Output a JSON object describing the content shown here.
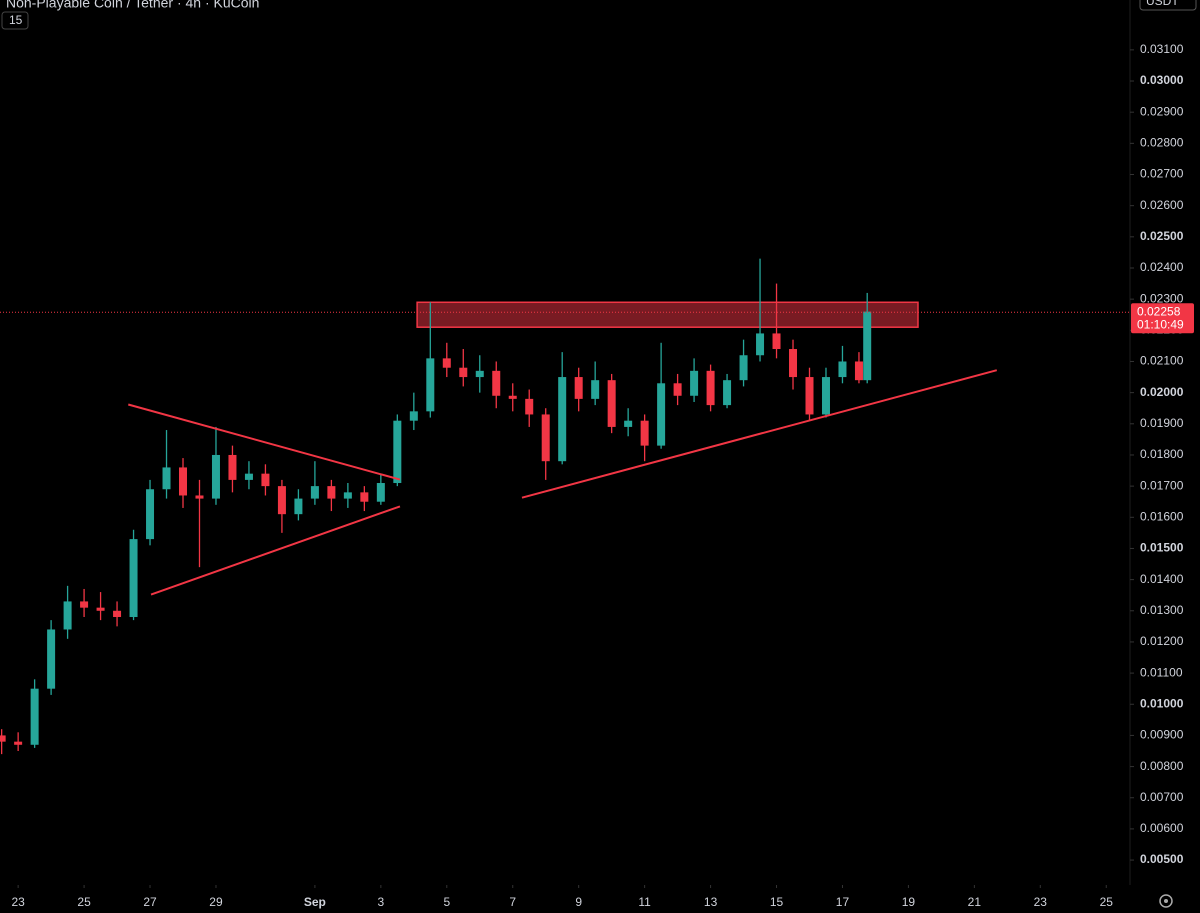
{
  "chart_data": {
    "type": "candlestick",
    "title": "Non-Playable Coin / Tether · 4h · KuCoin",
    "indicator": "15",
    "quote": "USDT",
    "countdown": "01:10:49",
    "last_price": 0.02258,
    "up_color": "#26a69a",
    "down_color": "#f23645",
    "x": [
      -0.5,
      0,
      0.5,
      1,
      1.5,
      2,
      2.5,
      3,
      3.5,
      4,
      4.5,
      5,
      5.5,
      6,
      6.5,
      7,
      7.5,
      8,
      8.5,
      9,
      9.5,
      10,
      10.5,
      11,
      11.5,
      12,
      12.5,
      13,
      13.5,
      14,
      14.5,
      15,
      15.5,
      16,
      16.5,
      17,
      17.5,
      18,
      18.5,
      19,
      19.5,
      20,
      20.5,
      21,
      21.5,
      22,
      22.5,
      23,
      23.5,
      24,
      24.5,
      25,
      25.5,
      25.75
    ],
    "open": [
      0.009,
      0.0088,
      0.0087,
      0.0105,
      0.0124,
      0.0133,
      0.0131,
      0.013,
      0.0128,
      0.0153,
      0.0169,
      0.0176,
      0.0167,
      0.0166,
      0.018,
      0.0172,
      0.0174,
      0.017,
      0.0161,
      0.0166,
      0.017,
      0.0166,
      0.0168,
      0.0165,
      0.0171,
      0.0191,
      0.0194,
      0.0211,
      0.0208,
      0.0205,
      0.0207,
      0.0199,
      0.0198,
      0.0193,
      0.0178,
      0.0205,
      0.0198,
      0.0204,
      0.0189,
      0.0191,
      0.0183,
      0.0203,
      0.0199,
      0.0207,
      0.0196,
      0.0204,
      0.0212,
      0.0219,
      0.0214,
      0.0205,
      0.0193,
      0.0205,
      0.021,
      0.0204
    ],
    "high": [
      0.0092,
      0.0091,
      0.0108,
      0.0127,
      0.0138,
      0.0137,
      0.0136,
      0.0133,
      0.0156,
      0.0172,
      0.0188,
      0.0179,
      0.0172,
      0.0189,
      0.0183,
      0.0178,
      0.0177,
      0.0172,
      0.0169,
      0.0178,
      0.0172,
      0.0171,
      0.017,
      0.0174,
      0.0193,
      0.02,
      0.0229,
      0.0216,
      0.0214,
      0.0212,
      0.021,
      0.0203,
      0.0201,
      0.0195,
      0.0213,
      0.0208,
      0.021,
      0.0206,
      0.0195,
      0.0193,
      0.0216,
      0.0206,
      0.0211,
      0.0209,
      0.0206,
      0.0217,
      0.0243,
      0.0235,
      0.0217,
      0.0208,
      0.0208,
      0.0215,
      0.0213,
      0.0232
    ],
    "low": [
      0.0084,
      0.0085,
      0.0086,
      0.0103,
      0.0121,
      0.0128,
      0.0127,
      0.0125,
      0.0127,
      0.0151,
      0.0166,
      0.0163,
      0.0144,
      0.0164,
      0.0168,
      0.0169,
      0.0167,
      0.0155,
      0.0159,
      0.0164,
      0.0162,
      0.0163,
      0.0162,
      0.0164,
      0.017,
      0.0188,
      0.0192,
      0.0205,
      0.0202,
      0.02,
      0.0195,
      0.0194,
      0.0189,
      0.0172,
      0.0177,
      0.0194,
      0.0196,
      0.0187,
      0.0186,
      0.0178,
      0.0182,
      0.0196,
      0.0197,
      0.0194,
      0.0195,
      0.0202,
      0.021,
      0.0211,
      0.0201,
      0.0191,
      0.0192,
      0.0203,
      0.0203,
      0.0203
    ],
    "close": [
      0.0088,
      0.0087,
      0.0105,
      0.0124,
      0.0133,
      0.0131,
      0.013,
      0.0128,
      0.0153,
      0.0169,
      0.0176,
      0.0167,
      0.0166,
      0.018,
      0.0172,
      0.0174,
      0.017,
      0.0161,
      0.0166,
      0.017,
      0.0166,
      0.0168,
      0.0165,
      0.0171,
      0.0191,
      0.0194,
      0.0211,
      0.0208,
      0.0205,
      0.0207,
      0.0199,
      0.0198,
      0.0193,
      0.0178,
      0.0205,
      0.0198,
      0.0204,
      0.0189,
      0.0191,
      0.0183,
      0.0203,
      0.0199,
      0.0207,
      0.0196,
      0.0204,
      0.0212,
      0.0219,
      0.0214,
      0.0205,
      0.0193,
      0.0205,
      0.021,
      0.0204,
      0.0226
    ],
    "xlim": [
      -0.55,
      33.72
    ],
    "ylim": [
      0.0042,
      0.0326
    ],
    "xticks": [
      {
        "value": 0,
        "label": "23"
      },
      {
        "value": 2,
        "label": "25"
      },
      {
        "value": 4,
        "label": "27"
      },
      {
        "value": 6,
        "label": "29"
      },
      {
        "value": 9,
        "label": "Sep"
      },
      {
        "value": 11,
        "label": "3"
      },
      {
        "value": 13,
        "label": "5"
      },
      {
        "value": 15,
        "label": "7"
      },
      {
        "value": 17,
        "label": "9"
      },
      {
        "value": 19,
        "label": "11"
      },
      {
        "value": 21,
        "label": "13"
      },
      {
        "value": 23,
        "label": "15"
      },
      {
        "value": 25,
        "label": "17"
      },
      {
        "value": 27,
        "label": "19"
      },
      {
        "value": 29,
        "label": "21"
      },
      {
        "value": 31,
        "label": "23"
      },
      {
        "value": 33,
        "label": "25"
      }
    ],
    "yticks": [
      {
        "value": 0.005,
        "label": "0.00500"
      },
      {
        "value": 0.006,
        "label": "0.00600"
      },
      {
        "value": 0.007,
        "label": "0.00700"
      },
      {
        "value": 0.008,
        "label": "0.00800"
      },
      {
        "value": 0.009,
        "label": "0.00900"
      },
      {
        "value": 0.01,
        "label": "0.01000"
      },
      {
        "value": 0.011,
        "label": "0.01100"
      },
      {
        "value": 0.012,
        "label": "0.01200"
      },
      {
        "value": 0.013,
        "label": "0.01300"
      },
      {
        "value": 0.014,
        "label": "0.01400"
      },
      {
        "value": 0.015,
        "label": "0.01500"
      },
      {
        "value": 0.016,
        "label": "0.01600"
      },
      {
        "value": 0.017,
        "label": "0.01700"
      },
      {
        "value": 0.018,
        "label": "0.01800"
      },
      {
        "value": 0.019,
        "label": "0.01900"
      },
      {
        "value": 0.02,
        "label": "0.02000"
      },
      {
        "value": 0.021,
        "label": "0.02100"
      },
      {
        "value": 0.022,
        "label": "0.02200"
      },
      {
        "value": 0.023,
        "label": "0.02300"
      },
      {
        "value": 0.024,
        "label": "0.02400"
      },
      {
        "value": 0.025,
        "label": "0.02500"
      },
      {
        "value": 0.026,
        "label": "0.02600"
      },
      {
        "value": 0.027,
        "label": "0.02700"
      },
      {
        "value": 0.028,
        "label": "0.02800"
      },
      {
        "value": 0.029,
        "label": "0.02900"
      },
      {
        "value": 0.03,
        "label": "0.03000"
      },
      {
        "value": 0.031,
        "label": "0.03100"
      }
    ],
    "zone": {
      "x": [
        12.1,
        27.29
      ],
      "y": [
        0.0221,
        0.0229
      ]
    },
    "trendlines": [
      {
        "x": [
          3.34,
          11.58
        ],
        "y": [
          0.01962,
          0.01721
        ]
      },
      {
        "x": [
          4.03,
          11.58
        ],
        "y": [
          0.01352,
          0.01635
        ]
      },
      {
        "x": [
          15.28,
          29.68
        ],
        "y": [
          0.01663,
          0.02072
        ]
      }
    ],
    "drawing_color": "#f23645"
  }
}
